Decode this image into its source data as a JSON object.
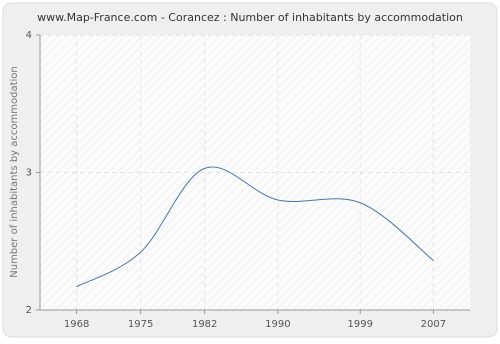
{
  "chart_data": {
    "type": "line",
    "title": "www.Map-France.com - Corancez : Number of inhabitants by accommodation",
    "y_label": "Number of inhabitants by accommodation",
    "x": [
      1968,
      1975,
      1982,
      1990,
      1999,
      2007
    ],
    "series": [
      {
        "name": "Corancez",
        "color": "#4a76a8",
        "values": [
          2.17,
          2.42,
          3.03,
          2.8,
          2.78,
          2.36
        ]
      }
    ],
    "xlim": [
      1964,
      2011
    ],
    "xticks": [
      1968,
      1975,
      1982,
      1990,
      1999,
      2007
    ],
    "ylim": [
      2,
      4
    ],
    "yticks": [
      2,
      3,
      4
    ],
    "grid": true
  }
}
